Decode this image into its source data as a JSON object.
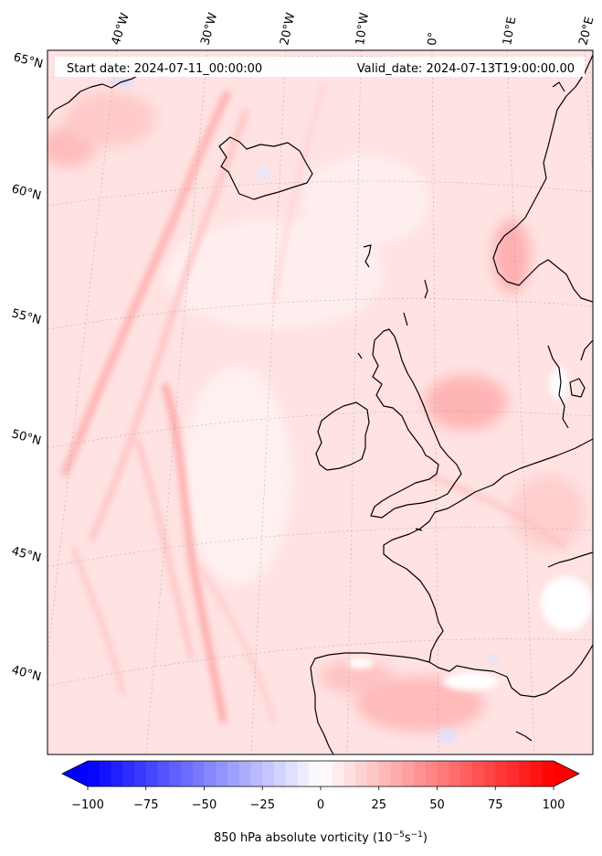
{
  "header": {
    "start_date": "Start date: 2024-07-11_00:00:00",
    "valid_date": "Valid_date: 2024-07-13T19:00:00.00"
  },
  "map": {
    "projection": "conic",
    "lon_labels": [
      "40°W",
      "30°W",
      "20°W",
      "10°W",
      "0°",
      "10°E",
      "20°E"
    ],
    "lat_labels": [
      "65°N",
      "60°N",
      "55°N",
      "50°N",
      "45°N",
      "40°N"
    ]
  },
  "colorbar": {
    "label": "850 hPa absolute vorticity (10",
    "label_exp1": "−5",
    "label_mid": "s",
    "label_exp2": "−1",
    "label_end": ")",
    "min": -100,
    "max": 100,
    "levels": 40,
    "tick_labels": [
      "−100",
      "−75",
      "−50",
      "−25",
      "0",
      "25",
      "50",
      "75",
      "100"
    ],
    "low_color": "#0000ff",
    "high_color": "#ff0000",
    "mid_color": "#ffffff",
    "extend": "both"
  },
  "colors": {
    "background_field": "#ffe4e4",
    "coast": "#000000"
  }
}
